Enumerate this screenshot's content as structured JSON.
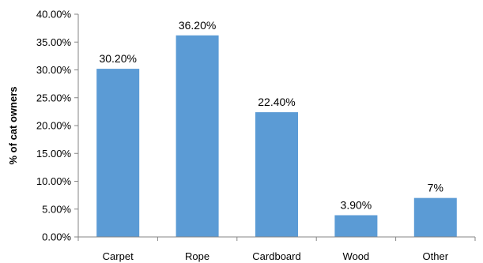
{
  "chart_data": {
    "type": "bar",
    "title": "",
    "xlabel": "",
    "ylabel": "% of cat owners",
    "categories": [
      "Carpet",
      "Rope",
      "Cardboard",
      "Wood",
      "Other"
    ],
    "values": [
      30.2,
      36.2,
      22.4,
      3.9,
      7.0
    ],
    "data_labels": [
      "30.20%",
      "36.20%",
      "22.40%",
      "3.90%",
      "7%"
    ],
    "ylim": [
      0,
      40
    ],
    "yticks": [
      0,
      5,
      10,
      15,
      20,
      25,
      30,
      35,
      40
    ],
    "ytick_labels": [
      "0.00%",
      "5.00%",
      "10.00%",
      "15.00%",
      "20.00%",
      "25.00%",
      "30.00%",
      "35.00%",
      "40.00%"
    ],
    "grid": false,
    "legend": "none",
    "bar_color": "#5b9bd5",
    "axis_color": "#868686"
  }
}
